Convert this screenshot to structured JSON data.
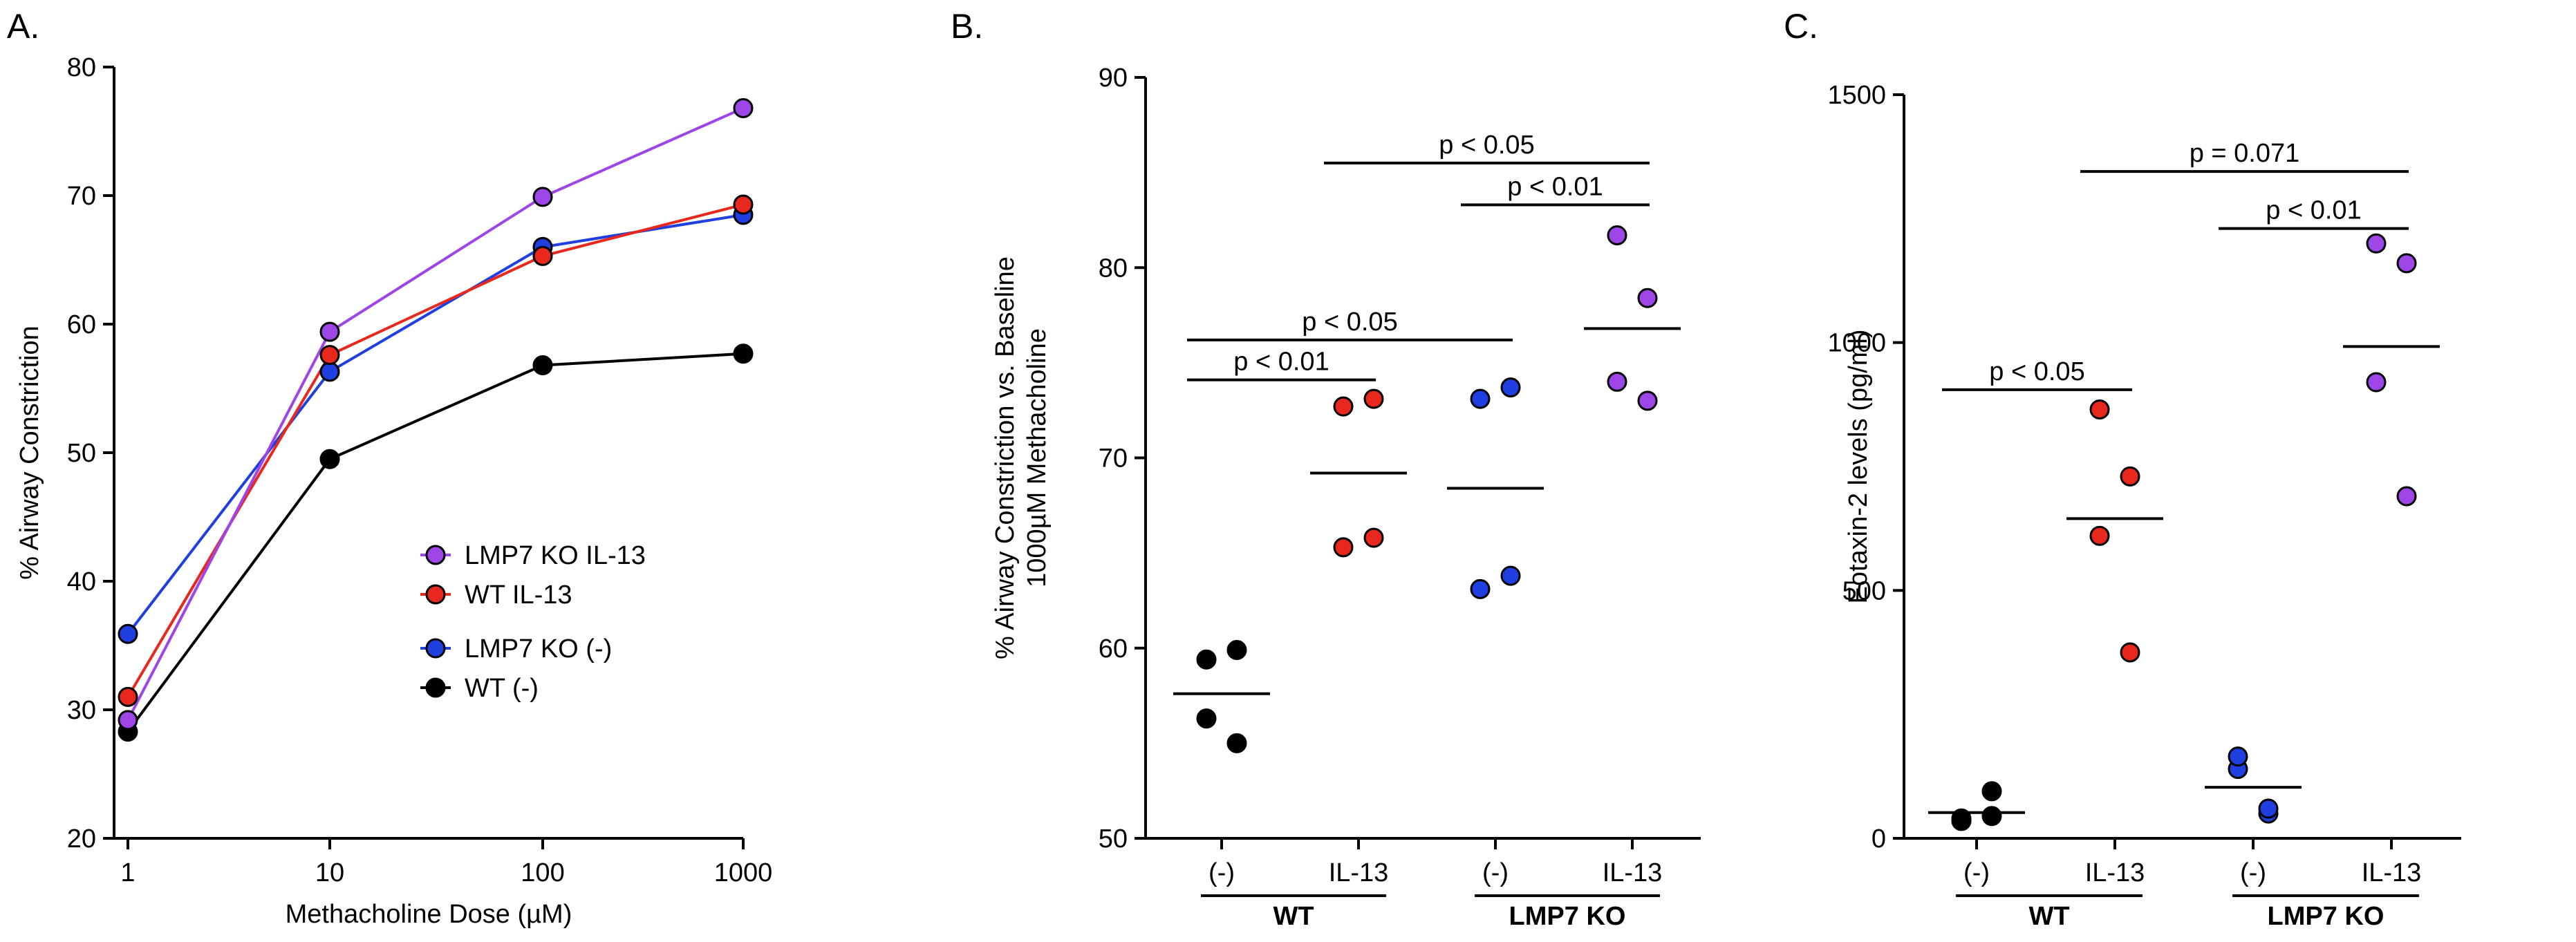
{
  "chart_data": [
    {
      "panel": "A.",
      "type": "line",
      "xscale": "log",
      "x": [
        1,
        10,
        100,
        1000
      ],
      "x_tick_labels": [
        "1",
        "10",
        "100",
        "1000"
      ],
      "xlabel": "Methacholine Dose (µM)",
      "ylabel": "% Airway Constriction",
      "ylim": [
        20,
        80
      ],
      "yticks": [
        20,
        30,
        40,
        50,
        60,
        70,
        80
      ],
      "legend_position": "center-right",
      "series": [
        {
          "name": "LMP7 KO IL-13",
          "color": "#9d45e6",
          "values": [
            29.2,
            59.4,
            69.9,
            76.8
          ]
        },
        {
          "name": "WT IL-13",
          "color": "#e8281c",
          "values": [
            31.0,
            57.6,
            65.3,
            69.3
          ]
        },
        {
          "name": "LMP7 KO (-)",
          "color": "#1f3fe0",
          "values": [
            35.9,
            56.3,
            66.0,
            68.5
          ]
        },
        {
          "name": "WT (-)",
          "color": "#000000",
          "values": [
            28.3,
            49.5,
            56.8,
            57.7
          ]
        }
      ]
    },
    {
      "panel": "B.",
      "type": "scatter",
      "ylabel_line1": "% Airway Constriction vs. Baseline",
      "ylabel_line2": "1000µM Methacholine",
      "ylim": [
        50,
        90
      ],
      "yticks": [
        50,
        60,
        70,
        80,
        90
      ],
      "categories": [
        "(-)",
        "IL-13",
        "(-)",
        "IL-13"
      ],
      "groups": [
        {
          "name": "WT",
          "categories": [
            0,
            1
          ]
        },
        {
          "name": "LMP7 KO",
          "categories": [
            2,
            3
          ]
        }
      ],
      "series": [
        {
          "name": "WT (-)",
          "color": "#000000",
          "values": [
            59.4,
            59.9,
            56.3,
            55.0
          ],
          "mean": 57.6
        },
        {
          "name": "WT IL-13",
          "color": "#e8281c",
          "values": [
            72.7,
            73.1,
            65.3,
            65.8
          ],
          "mean": 69.2
        },
        {
          "name": "LMP7 KO (-)",
          "color": "#1f3fe0",
          "values": [
            73.1,
            73.7,
            63.1,
            63.8
          ],
          "mean": 68.4
        },
        {
          "name": "LMP7 KO IL-13",
          "color": "#9d45e6",
          "values": [
            81.7,
            78.4,
            74.0,
            73.0
          ],
          "mean": 76.8
        }
      ],
      "comparisons": [
        {
          "from": 0,
          "to": 1,
          "label": "p < 0.01",
          "y": 74.1
        },
        {
          "from": 0,
          "to": 2,
          "label": "p < 0.05",
          "y": 76.2
        },
        {
          "from": 2,
          "to": 3,
          "label": "p < 0.01",
          "y": 83.3
        },
        {
          "from": 1,
          "to": 3,
          "label": "p < 0.05",
          "y": 85.5
        }
      ]
    },
    {
      "panel": "C.",
      "type": "scatter",
      "ylabel": "Eotaxin-2 levels (pg/ml)",
      "ylim": [
        0,
        1500
      ],
      "yticks": [
        0,
        500,
        1000,
        1500
      ],
      "categories": [
        "(-)",
        "IL-13",
        "(-)",
        "IL-13"
      ],
      "groups": [
        {
          "name": "WT",
          "categories": [
            0,
            1
          ]
        },
        {
          "name": "LMP7 KO",
          "categories": [
            2,
            3
          ]
        }
      ],
      "series": [
        {
          "name": "WT (-)",
          "color": "#000000",
          "values": [
            35,
            45,
            40,
            95
          ],
          "mean": 52
        },
        {
          "name": "WT IL-13",
          "color": "#e8281c",
          "values": [
            865,
            730,
            610,
            375
          ],
          "mean": 645
        },
        {
          "name": "LMP7 KO (-)",
          "color": "#1f3fe0",
          "values": [
            140,
            50,
            165,
            60
          ],
          "mean": 103
        },
        {
          "name": "LMP7 KO IL-13",
          "color": "#9d45e6",
          "values": [
            1200,
            1160,
            920,
            690
          ],
          "mean": 992
        }
      ],
      "comparisons": [
        {
          "from": 0,
          "to": 1,
          "label": "p < 0.05",
          "y": 905
        },
        {
          "from": 2,
          "to": 3,
          "label": "p < 0.01",
          "y": 1230
        },
        {
          "from": 1,
          "to": 3,
          "label": "p = 0.071",
          "y": 1345
        }
      ]
    }
  ]
}
